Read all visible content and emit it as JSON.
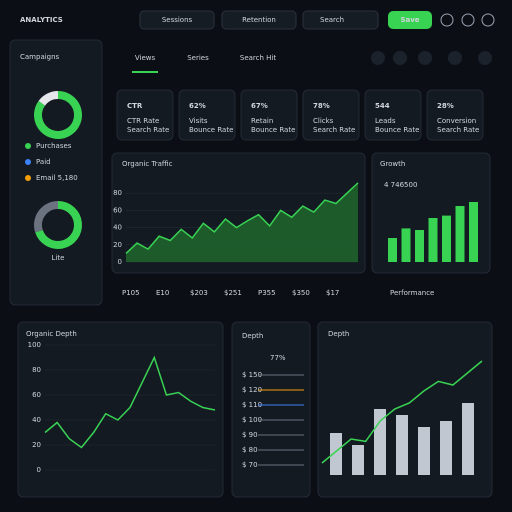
{
  "header": {
    "logo": "ANALYTICS",
    "tabs": [
      "Sessions",
      "Retention"
    ],
    "search": "Search",
    "button": "Save"
  },
  "sidebar": {
    "title": "Campaigns",
    "donut1": [
      85,
      15
    ],
    "legend": [
      {
        "text": "Purchases",
        "color": "#39d353"
      },
      {
        "text": "Paid",
        "color": "#3b82f6"
      },
      {
        "text": "Email 5,180",
        "color": "#f59e0b"
      }
    ],
    "donut2": [
      70,
      30
    ],
    "donut2_label": "Lite"
  },
  "nav": {
    "tabs": [
      "Views",
      "Series",
      "Search Hit"
    ]
  },
  "kpis": [
    {
      "value": "CTR",
      "label": "CTR Rate",
      "sub": "Search Rate",
      "color": "#39d353"
    },
    {
      "value": "62%",
      "label": "Visits",
      "sub": "Bounce Rate",
      "color": "#ffffff"
    },
    {
      "value": "67%",
      "label": "Retain",
      "sub": "Bounce Rate",
      "color": "#ffffff"
    },
    {
      "value": "78%",
      "label": "Clicks",
      "sub": "Search Rate",
      "color": "#ffffff"
    },
    {
      "value": "544",
      "label": "Leads",
      "sub": "Bounce Rate",
      "color": "#ffffff"
    },
    {
      "value": "28%",
      "label": "Conversion",
      "sub": "Search Rate",
      "color": "#39d353"
    }
  ],
  "traffic": {
    "title": "Organic Traffic",
    "values": [
      10,
      22,
      15,
      30,
      25,
      38,
      28,
      45,
      35,
      50,
      40,
      48,
      55,
      42,
      60,
      52,
      65,
      58,
      72,
      68,
      80,
      92
    ],
    "ylim": [
      0,
      100
    ],
    "yticks": [
      0,
      20,
      40,
      60,
      80
    ]
  },
  "growth": {
    "title": "Growth",
    "value": "4 746500",
    "values": [
      30,
      42,
      40,
      55,
      58,
      70,
      75
    ],
    "ylim": [
      0,
      100
    ]
  },
  "codes": [
    {
      "text": "P105",
      "color": "#39d353"
    },
    {
      "text": "E10",
      "color": "#39d353"
    },
    {
      "text": "$203",
      "color": "#39d353"
    },
    {
      "text": "$251",
      "color": "#ef4444"
    },
    {
      "text": "P355",
      "color": "#ec4899"
    },
    {
      "text": "$350",
      "color": "#3b82f6"
    },
    {
      "text": "$17",
      "color": "#9ca3af"
    },
    {
      "text": "Performance",
      "color": "#9ca3af"
    }
  ],
  "organic": {
    "title": "Organic Depth",
    "values": [
      30,
      38,
      25,
      18,
      30,
      45,
      40,
      50,
      70,
      90,
      60,
      62,
      55,
      50,
      48
    ],
    "ylim": [
      0,
      100
    ],
    "yticks": [
      0,
      20,
      40,
      60,
      80,
      100
    ]
  },
  "depth": {
    "title": "Depth",
    "value": "77%",
    "rows": [
      {
        "text": "$ 150",
        "color": "#6b7280"
      },
      {
        "text": "$ 120",
        "color": "#f59e0b"
      },
      {
        "text": "$ 110",
        "color": "#3b82f6"
      },
      {
        "text": "$ 100",
        "color": "#6b7280"
      },
      {
        "text": "$ 90",
        "color": "#6b7280"
      },
      {
        "text": "$ 80",
        "color": "#6b7280"
      },
      {
        "text": "$ 70",
        "color": "#6b7280"
      }
    ]
  },
  "depth2": {
    "title": "Depth",
    "bars": [
      35,
      25,
      55,
      50,
      40,
      45,
      60
    ],
    "line": [
      10,
      20,
      30,
      28,
      45,
      55,
      60,
      70,
      78,
      75,
      85,
      95
    ],
    "ylim": [
      0,
      100
    ]
  }
}
